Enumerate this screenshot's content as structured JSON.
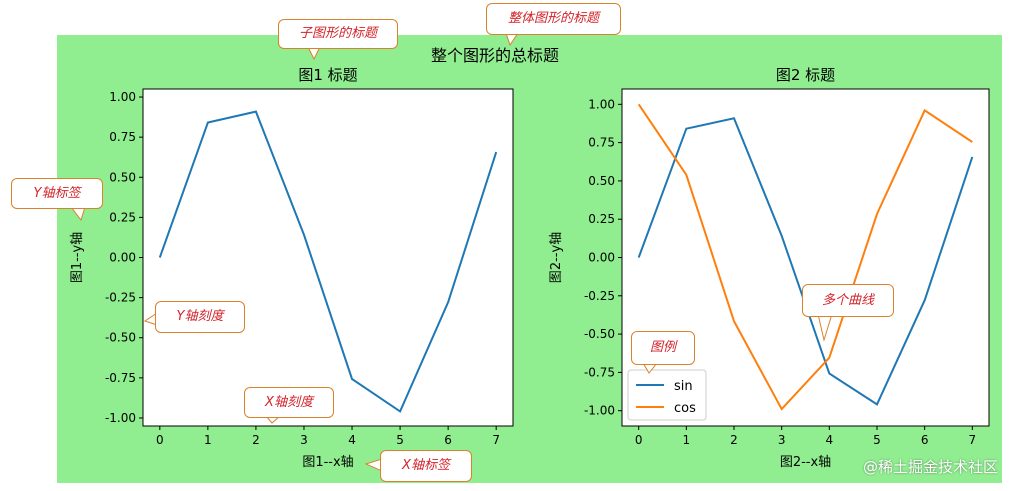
{
  "figure": {
    "suptitle": "整个图形的总标题",
    "background": "#90ee90"
  },
  "chart_data": [
    {
      "type": "line",
      "title": "图1 标题",
      "xlabel": "图1--x轴",
      "ylabel": "图1--y轴",
      "x": [
        0,
        1,
        2,
        3,
        4,
        5,
        6,
        7
      ],
      "xticks": [
        "0",
        "1",
        "2",
        "3",
        "4",
        "5",
        "6",
        "7"
      ],
      "yticks": [
        "1.00",
        "0.75",
        "0.50",
        "0.25",
        "0.00",
        "-0.25",
        "-0.50",
        "-0.75",
        "-1.00"
      ],
      "ylim": [
        -1.05,
        1.05
      ],
      "legend": false,
      "series": [
        {
          "values": [
            0.0,
            0.841,
            0.909,
            0.141,
            -0.757,
            -0.959,
            -0.279,
            0.657
          ],
          "color": "#1f77b4"
        }
      ]
    },
    {
      "type": "line",
      "title": "图2 标题",
      "xlabel": "图2--x轴",
      "ylabel": "图2--y轴",
      "x": [
        0,
        1,
        2,
        3,
        4,
        5,
        6,
        7
      ],
      "xticks": [
        "0",
        "1",
        "2",
        "3",
        "4",
        "5",
        "6",
        "7"
      ],
      "yticks": [
        "1.00",
        "0.75",
        "0.50",
        "0.25",
        "0.00",
        "-0.25",
        "-0.50",
        "-0.75",
        "-1.00"
      ],
      "ylim": [
        -1.1,
        1.1
      ],
      "legend": "lower-left",
      "series": [
        {
          "name": "sin",
          "values": [
            0.0,
            0.841,
            0.909,
            0.141,
            -0.757,
            -0.959,
            -0.279,
            0.657
          ],
          "color": "#1f77b4"
        },
        {
          "name": "cos",
          "values": [
            1.0,
            0.54,
            -0.416,
            -0.99,
            -0.654,
            0.284,
            0.96,
            0.754
          ],
          "color": "#ff7f0e"
        }
      ]
    }
  ],
  "annotations": {
    "subplot_title": "子图形的标题",
    "figure_title": "整体图形的标题",
    "y_label": "Y轴标签",
    "y_ticks": "Y轴刻度",
    "x_ticks": "X轴刻度",
    "x_label": "X轴标签",
    "legend": "图例",
    "multi_curve": "多个曲线"
  },
  "watermark": "@稀土掘金技术社区"
}
